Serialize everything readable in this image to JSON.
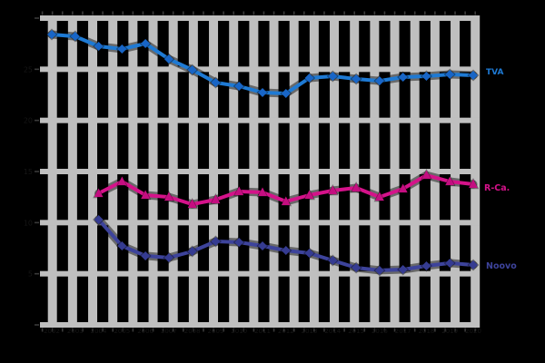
{
  "chart_data": {
    "type": "line",
    "title": "",
    "x_labels": [
      "2002",
      "2003",
      "2004",
      "2005",
      "2006",
      "2007",
      "2008",
      "2009",
      "2010",
      "2011",
      "2012",
      "2013",
      "2014",
      "2015",
      "2016",
      "2017",
      "2018",
      "2019",
      "2020"
    ],
    "y_tick_labels": [
      "25",
      "20",
      "15",
      "10",
      "5"
    ],
    "ylim": [
      0,
      30.3
    ],
    "grid": true,
    "legend_position": "right-of-line-ends",
    "series": [
      {
        "name": "TVA",
        "color": "#1E7AD4",
        "marker": "diamond",
        "start_index": 0,
        "values": [
          28.4,
          28.22,
          27.25,
          26.98,
          27.51,
          26.0,
          24.94,
          23.7,
          23.34,
          22.72,
          22.63,
          24.14,
          24.32,
          24.05,
          23.87,
          24.23,
          24.32,
          24.5,
          24.41
        ]
      },
      {
        "name": "R-Ca.",
        "color": "#D5128A",
        "marker": "triangle",
        "start_index": 2,
        "values": [
          12.87,
          14.02,
          12.69,
          12.51,
          11.8,
          12.25,
          13.05,
          12.96,
          12.07,
          12.69,
          13.14,
          13.4,
          12.51,
          13.31,
          14.64,
          14.02,
          13.76
        ]
      },
      {
        "name": "Noovo",
        "color": "#3D439B",
        "marker": "diamond",
        "start_index": 2,
        "values": [
          10.3,
          7.72,
          6.75,
          6.57,
          7.19,
          8.17,
          8.08,
          7.72,
          7.28,
          7.01,
          6.3,
          5.59,
          5.33,
          5.41,
          5.77,
          6.04,
          5.86
        ]
      }
    ]
  },
  "legend": {
    "tva": "TVA",
    "rca": "R-Ca.",
    "noovo": "Noovo"
  },
  "colors": {
    "background": "#000000",
    "grid": "#BFBFBF",
    "tva": "#1E7AD4",
    "rca": "#D5128A",
    "noovo": "#3D439B",
    "marker_tva": "#1865C6",
    "marker_rca": "#C40E80",
    "marker_noovo": "#353B91",
    "faint_text": "#161616",
    "tick": "#3a3a3a"
  }
}
